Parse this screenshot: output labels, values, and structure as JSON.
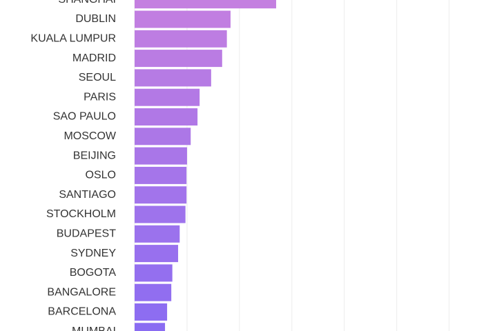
{
  "chart_data": {
    "type": "bar",
    "orientation": "horizontal",
    "categories": [
      "SHANGHAI",
      "DUBLIN",
      "KUALA LUMPUR",
      "MADRID",
      "SEOUL",
      "PARIS",
      "SAO PAULO",
      "MOSCOW",
      "BEIJING",
      "OSLO",
      "SANTIAGO",
      "STOCKHOLM",
      "BUDAPEST",
      "SYDNEY",
      "BOGOTA",
      "BANGALORE",
      "BARCELONA",
      "MUMBAI"
    ],
    "values": [
      2.7,
      1.83,
      1.76,
      1.67,
      1.46,
      1.24,
      1.2,
      1.07,
      1.0,
      0.99,
      0.99,
      0.97,
      0.86,
      0.83,
      0.72,
      0.7,
      0.62,
      0.58
    ],
    "color_range": [
      "#c47fe0",
      "#8a6cf2"
    ],
    "xlim": [
      0,
      6.36
    ],
    "xticks": [
      0,
      1,
      2,
      3,
      4,
      5,
      6
    ],
    "grid": true
  }
}
